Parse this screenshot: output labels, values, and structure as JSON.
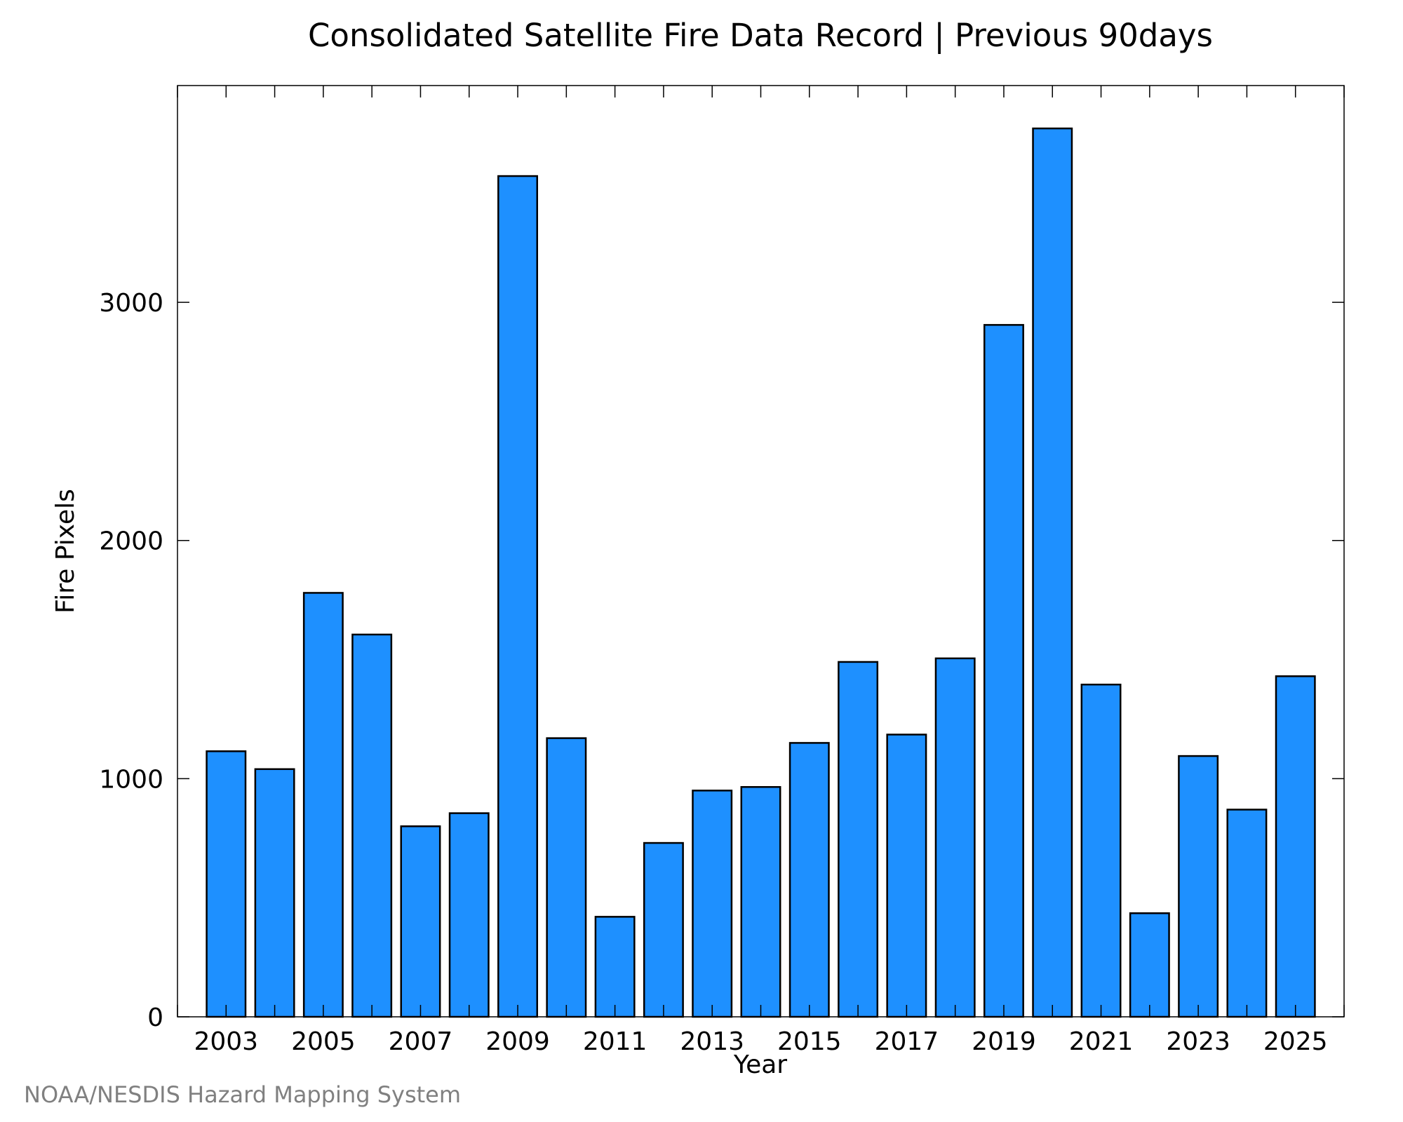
{
  "chart_data": {
    "type": "bar",
    "title": "Consolidated Satellite Fire Data Record | Previous 90days",
    "xlabel": "Year",
    "ylabel": "Fire Pixels",
    "categories": [
      "2003",
      "2004",
      "2005",
      "2006",
      "2007",
      "2008",
      "2009",
      "2010",
      "2011",
      "2012",
      "2013",
      "2014",
      "2015",
      "2016",
      "2017",
      "2018",
      "2019",
      "2020",
      "2021",
      "2022",
      "2023",
      "2024",
      "2025"
    ],
    "x_tick_labels": [
      "2003",
      "2005",
      "2007",
      "2009",
      "2011",
      "2013",
      "2015",
      "2017",
      "2019",
      "2021",
      "2023",
      "2025"
    ],
    "y_ticks": [
      0,
      1000,
      2000,
      3000
    ],
    "y_tick_labels": [
      "0",
      "1000",
      "2000",
      "3000"
    ],
    "values": [
      1115,
      1040,
      1780,
      1605,
      800,
      855,
      3530,
      1170,
      420,
      730,
      950,
      965,
      1150,
      1490,
      1185,
      1505,
      2905,
      3730,
      1395,
      435,
      1095,
      870,
      1430
    ],
    "xlim": [
      2002.0,
      2026.0
    ],
    "ylim": [
      0,
      3910
    ],
    "grid": false,
    "legend": "none",
    "bar_color": "#1e90ff",
    "bar_edge_color": "#000000"
  },
  "credit": "NOAA/NESDIS Hazard Mapping System",
  "colors": {
    "credit_text": "#808080",
    "axis": "#000000"
  }
}
